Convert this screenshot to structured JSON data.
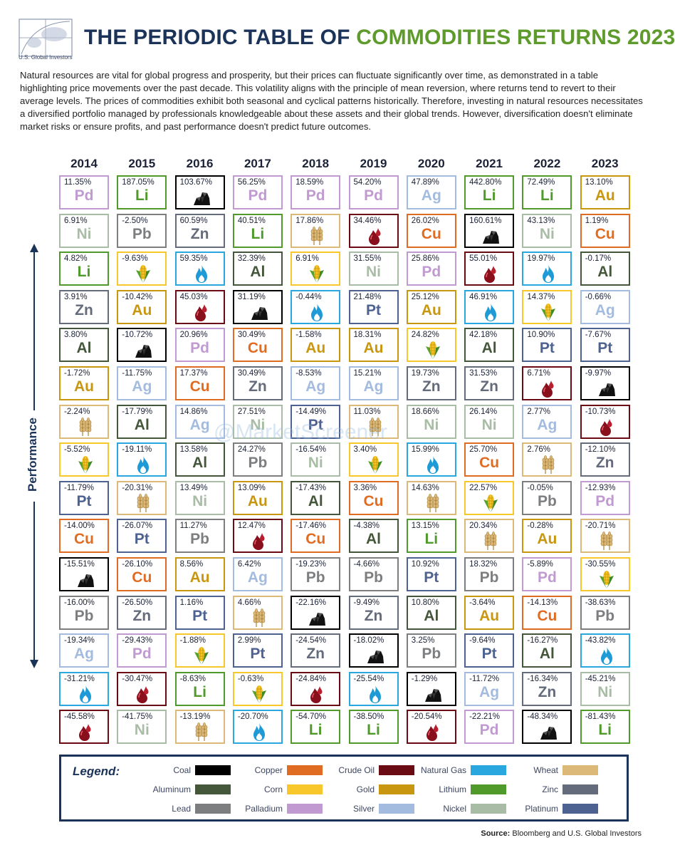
{
  "logo_text": "U.S. Global Investors",
  "title_part1": "THE PERIODIC TABLE OF",
  "title_part2": "COMMODITIES RETURNS 2023",
  "intro": "Natural resources are vital for global progress and prosperity, but their prices can fluctuate significantly over time, as demonstrated in a table highlighting price movements over the past decade. This volatility aligns with the principle of mean reversion, where returns tend to revert to their average levels. The prices of commodities exhibit both seasonal and cyclical patterns historically. Therefore, investing in natural resources necessitates a diversified portfolio managed by professionals knowledgeable about these assets and their global trends. However, diversification doesn't eliminate market risks or ensure profits, and past performance doesn't predict future outcomes.",
  "axis_label": "Performance",
  "watermark": "@MarketScreener",
  "legend_title": "Legend:",
  "source_label": "Source:",
  "source_text": "Bloomberg and U.S. Global Investors",
  "commodities": {
    "Coal": {
      "symbol": "",
      "icon": "coal-icon",
      "color": "#000000"
    },
    "Aluminum": {
      "symbol": "Al",
      "color": "#44573a"
    },
    "Lead": {
      "symbol": "Pb",
      "color": "#7d7e80"
    },
    "Copper": {
      "symbol": "Cu",
      "color": "#e06c23"
    },
    "Corn": {
      "symbol": "",
      "icon": "corn-icon",
      "color": "#f8c72c"
    },
    "Palladium": {
      "symbol": "Pd",
      "color": "#c09ad1"
    },
    "Crude Oil": {
      "symbol": "",
      "icon": "oil-drop-icon",
      "color": "#6b0b14"
    },
    "Gold": {
      "symbol": "Au",
      "color": "#c8970f"
    },
    "Silver": {
      "symbol": "Ag",
      "color": "#a3bbdf"
    },
    "Natural Gas": {
      "symbol": "",
      "icon": "flame-icon",
      "color": "#2aa7df"
    },
    "Lithium": {
      "symbol": "Li",
      "color": "#4f9a2a"
    },
    "Nickel": {
      "symbol": "Ni",
      "color": "#a9bca6"
    },
    "Wheat": {
      "symbol": "",
      "icon": "wheat-icon",
      "color": "#dcb879"
    },
    "Zinc": {
      "symbol": "Zn",
      "color": "#646b7b"
    },
    "Platinum": {
      "symbol": "Pt",
      "color": "#4e6291"
    }
  },
  "legend_items": [
    "Coal",
    "Copper",
    "Crude Oil",
    "Natural Gas",
    "Wheat",
    "Aluminum",
    "Corn",
    "Gold",
    "Lithium",
    "Zinc",
    "Lead",
    "Palladium",
    "Silver",
    "Nickel",
    "Platinum"
  ],
  "chart_data": {
    "type": "table",
    "years": [
      "2014",
      "2015",
      "2016",
      "2017",
      "2018",
      "2019",
      "2020",
      "2021",
      "2022",
      "2023"
    ],
    "columns": [
      [
        [
          "Palladium",
          "11.35%"
        ],
        [
          "Nickel",
          "6.91%"
        ],
        [
          "Lithium",
          "4.82%"
        ],
        [
          "Zinc",
          "3.91%"
        ],
        [
          "Aluminum",
          "3.80%"
        ],
        [
          "Gold",
          "-1.72%"
        ],
        [
          "Wheat",
          "-2.24%"
        ],
        [
          "Corn",
          "-5.52%"
        ],
        [
          "Platinum",
          "-11.79%"
        ],
        [
          "Copper",
          "-14.00%"
        ],
        [
          "Coal",
          "-15.51%"
        ],
        [
          "Lead",
          "-16.00%"
        ],
        [
          "Silver",
          "-19.34%"
        ],
        [
          "Natural Gas",
          "-31.21%"
        ],
        [
          "Crude Oil",
          "-45.58%"
        ]
      ],
      [
        [
          "Lithium",
          "187.05%"
        ],
        [
          "Lead",
          "-2.50%"
        ],
        [
          "Corn",
          "-9.63%"
        ],
        [
          "Gold",
          "-10.42%"
        ],
        [
          "Coal",
          "-10.72%"
        ],
        [
          "Silver",
          "-11.75%"
        ],
        [
          "Aluminum",
          "-17.79%"
        ],
        [
          "Natural Gas",
          "-19.11%"
        ],
        [
          "Wheat",
          "-20.31%"
        ],
        [
          "Platinum",
          "-26.07%"
        ],
        [
          "Copper",
          "-26.10%"
        ],
        [
          "Zinc",
          "-26.50%"
        ],
        [
          "Palladium",
          "-29.43%"
        ],
        [
          "Crude Oil",
          "-30.47%"
        ],
        [
          "Nickel",
          "-41.75%"
        ]
      ],
      [
        [
          "Coal",
          "103.67%"
        ],
        [
          "Zinc",
          "60.59%"
        ],
        [
          "Natural Gas",
          "59.35%"
        ],
        [
          "Crude Oil",
          "45.03%"
        ],
        [
          "Palladium",
          "20.96%"
        ],
        [
          "Copper",
          "17.37%"
        ],
        [
          "Silver",
          "14.86%"
        ],
        [
          "Aluminum",
          "13.58%"
        ],
        [
          "Nickel",
          "13.49%"
        ],
        [
          "Lead",
          "11.27%"
        ],
        [
          "Gold",
          "8.56%"
        ],
        [
          "Platinum",
          "1.16%"
        ],
        [
          "Corn",
          "-1.88%"
        ],
        [
          "Lithium",
          "-8.63%"
        ],
        [
          "Wheat",
          "-13.19%"
        ]
      ],
      [
        [
          "Palladium",
          "56.25%"
        ],
        [
          "Lithium",
          "40.51%"
        ],
        [
          "Aluminum",
          "32.39%"
        ],
        [
          "Coal",
          "31.19%"
        ],
        [
          "Copper",
          "30.49%"
        ],
        [
          "Zinc",
          "30.49%"
        ],
        [
          "Nickel",
          "27.51%"
        ],
        [
          "Lead",
          "24.27%"
        ],
        [
          "Gold",
          "13.09%"
        ],
        [
          "Crude Oil",
          "12.47%"
        ],
        [
          "Silver",
          "6.42%"
        ],
        [
          "Wheat",
          "4.66%"
        ],
        [
          "Platinum",
          "2.99%"
        ],
        [
          "Corn",
          "-0.63%"
        ],
        [
          "Natural Gas",
          "-20.70%"
        ]
      ],
      [
        [
          "Palladium",
          "18.59%"
        ],
        [
          "Wheat",
          "17.86%"
        ],
        [
          "Corn",
          "6.91%"
        ],
        [
          "Natural Gas",
          "-0.44%"
        ],
        [
          "Gold",
          "-1.58%"
        ],
        [
          "Silver",
          "-8.53%"
        ],
        [
          "Platinum",
          "-14.49%"
        ],
        [
          "Nickel",
          "-16.54%"
        ],
        [
          "Aluminum",
          "-17.43%"
        ],
        [
          "Copper",
          "-17.46%"
        ],
        [
          "Lead",
          "-19.23%"
        ],
        [
          "Coal",
          "-22.16%"
        ],
        [
          "Zinc",
          "-24.54%"
        ],
        [
          "Crude Oil",
          "-24.84%"
        ],
        [
          "Lithium",
          "-54.70%"
        ]
      ],
      [
        [
          "Palladium",
          "54.20%"
        ],
        [
          "Crude Oil",
          "34.46%"
        ],
        [
          "Nickel",
          "31.55%"
        ],
        [
          "Platinum",
          "21.48%"
        ],
        [
          "Gold",
          "18.31%"
        ],
        [
          "Silver",
          "15.21%"
        ],
        [
          "Wheat",
          "11.03%"
        ],
        [
          "Corn",
          "3.40%"
        ],
        [
          "Copper",
          "3.36%"
        ],
        [
          "Aluminum",
          "-4.38%"
        ],
        [
          "Lead",
          "-4.66%"
        ],
        [
          "Zinc",
          "-9.49%"
        ],
        [
          "Coal",
          "-18.02%"
        ],
        [
          "Natural Gas",
          "-25.54%"
        ],
        [
          "Lithium",
          "-38.50%"
        ]
      ],
      [
        [
          "Silver",
          "47.89%"
        ],
        [
          "Copper",
          "26.02%"
        ],
        [
          "Palladium",
          "25.86%"
        ],
        [
          "Gold",
          "25.12%"
        ],
        [
          "Corn",
          "24.82%"
        ],
        [
          "Zinc",
          "19.73%"
        ],
        [
          "Nickel",
          "18.66%"
        ],
        [
          "Natural Gas",
          "15.99%"
        ],
        [
          "Wheat",
          "14.63%"
        ],
        [
          "Lithium",
          "13.15%"
        ],
        [
          "Platinum",
          "10.92%"
        ],
        [
          "Aluminum",
          "10.80%"
        ],
        [
          "Lead",
          "3.25%"
        ],
        [
          "Coal",
          "-1.29%"
        ],
        [
          "Crude Oil",
          "-20.54%"
        ]
      ],
      [
        [
          "Lithium",
          "442.80%"
        ],
        [
          "Coal",
          "160.61%"
        ],
        [
          "Crude Oil",
          "55.01%"
        ],
        [
          "Natural Gas",
          "46.91%"
        ],
        [
          "Aluminum",
          "42.18%"
        ],
        [
          "Zinc",
          "31.53%"
        ],
        [
          "Nickel",
          "26.14%"
        ],
        [
          "Copper",
          "25.70%"
        ],
        [
          "Corn",
          "22.57%"
        ],
        [
          "Wheat",
          "20.34%"
        ],
        [
          "Lead",
          "18.32%"
        ],
        [
          "Gold",
          "-3.64%"
        ],
        [
          "Platinum",
          "-9.64%"
        ],
        [
          "Silver",
          "-11.72%"
        ],
        [
          "Palladium",
          "-22.21%"
        ]
      ],
      [
        [
          "Lithium",
          "72.49%"
        ],
        [
          "Nickel",
          "43.13%"
        ],
        [
          "Natural Gas",
          "19.97%"
        ],
        [
          "Corn",
          "14.37%"
        ],
        [
          "Platinum",
          "10.90%"
        ],
        [
          "Crude Oil",
          "6.71%"
        ],
        [
          "Silver",
          "2.77%"
        ],
        [
          "Wheat",
          "2.76%"
        ],
        [
          "Lead",
          "-0.05%"
        ],
        [
          "Gold",
          "-0.28%"
        ],
        [
          "Palladium",
          "-5.89%"
        ],
        [
          "Copper",
          "-14.13%"
        ],
        [
          "Aluminum",
          "-16.27%"
        ],
        [
          "Zinc",
          "-16.34%"
        ],
        [
          "Coal",
          "-48.34%"
        ]
      ],
      [
        [
          "Gold",
          "13.10%"
        ],
        [
          "Copper",
          "1.19%"
        ],
        [
          "Aluminum",
          "-0.17%"
        ],
        [
          "Silver",
          "-0.66%"
        ],
        [
          "Platinum",
          "-7.67%"
        ],
        [
          "Coal",
          "-9.97%"
        ],
        [
          "Crude Oil",
          "-10.73%"
        ],
        [
          "Zinc",
          "-12.10%"
        ],
        [
          "Palladium",
          "-12.93%"
        ],
        [
          "Wheat",
          "-20.71%"
        ],
        [
          "Corn",
          "-30.55%"
        ],
        [
          "Lead",
          "-38.63%"
        ],
        [
          "Natural Gas",
          "-43.82%"
        ],
        [
          "Nickel",
          "-45.21%"
        ],
        [
          "Lithium",
          "-81.43%"
        ]
      ]
    ]
  }
}
